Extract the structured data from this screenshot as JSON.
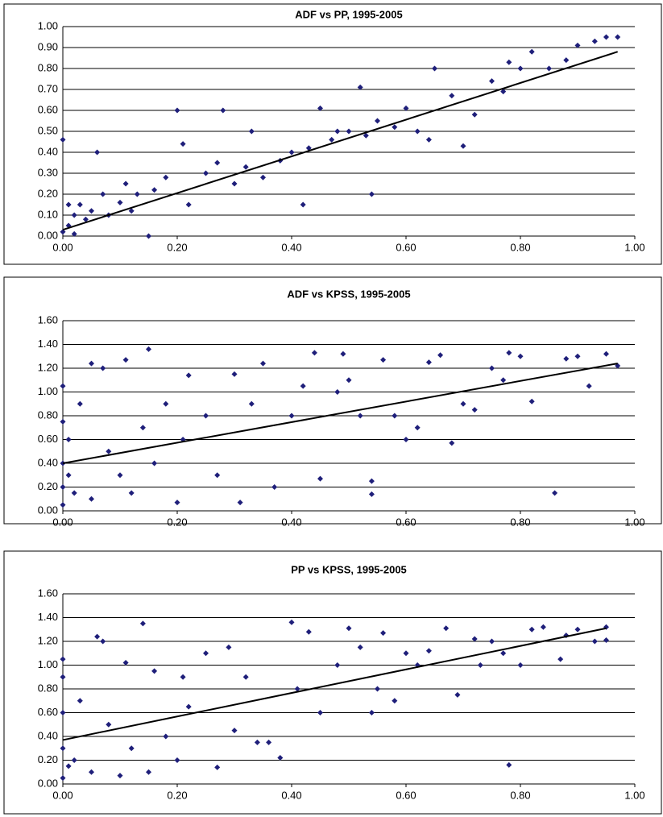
{
  "chart_data": [
    {
      "type": "scatter",
      "title": "ADF vs PP, 1995-2005",
      "color": "#1f1f7a",
      "grid": true,
      "xlim": [
        0,
        1
      ],
      "xticks": [
        {
          "value": 0,
          "label": "0.00"
        },
        {
          "value": 0.2,
          "label": "0.20"
        },
        {
          "value": 0.4,
          "label": "0.40"
        },
        {
          "value": 0.6,
          "label": "0.60"
        },
        {
          "value": 0.8,
          "label": "0.80"
        },
        {
          "value": 1,
          "label": "1.00"
        }
      ],
      "ylim": [
        0,
        1
      ],
      "yticks": [
        {
          "value": 0,
          "label": "0.00"
        },
        {
          "value": 0.1,
          "label": "0.10"
        },
        {
          "value": 0.2,
          "label": "0.20"
        },
        {
          "value": 0.3,
          "label": "0.30"
        },
        {
          "value": 0.4,
          "label": "0.40"
        },
        {
          "value": 0.5,
          "label": "0.50"
        },
        {
          "value": 0.6,
          "label": "0.60"
        },
        {
          "value": 0.7,
          "label": "0.70"
        },
        {
          "value": 0.8,
          "label": "0.80"
        },
        {
          "value": 0.9,
          "label": "0.90"
        },
        {
          "value": 1,
          "label": "1.00"
        }
      ],
      "x": [
        0,
        0,
        0.01,
        0.01,
        0.02,
        0.02,
        0.03,
        0.04,
        0.05,
        0.06,
        0.07,
        0.08,
        0.1,
        0.11,
        0.12,
        0.13,
        0.15,
        0.16,
        0.18,
        0.2,
        0.21,
        0.22,
        0.25,
        0.27,
        0.28,
        0.3,
        0.32,
        0.33,
        0.35,
        0.38,
        0.4,
        0.42,
        0.43,
        0.45,
        0.47,
        0.48,
        0.5,
        0.52,
        0.53,
        0.54,
        0.55,
        0.58,
        0.6,
        0.62,
        0.64,
        0.65,
        0.68,
        0.7,
        0.72,
        0.75,
        0.77,
        0.78,
        0.8,
        0.82,
        0.85,
        0.88,
        0.9,
        0.93,
        0.95,
        0.97
      ],
      "values": [
        0.46,
        0.02,
        0.05,
        0.15,
        0.1,
        0.01,
        0.15,
        0.08,
        0.12,
        0.4,
        0.2,
        0.1,
        0.16,
        0.25,
        0.12,
        0.2,
        0.0,
        0.22,
        0.28,
        0.6,
        0.44,
        0.15,
        0.3,
        0.35,
        0.6,
        0.25,
        0.33,
        0.5,
        0.28,
        0.36,
        0.4,
        0.15,
        0.42,
        0.61,
        0.46,
        0.5,
        0.5,
        0.71,
        0.48,
        0.2,
        0.55,
        0.52,
        0.61,
        0.5,
        0.46,
        0.8,
        0.67,
        0.43,
        0.58,
        0.74,
        0.69,
        0.83,
        0.8,
        0.88,
        0.8,
        0.84,
        0.91,
        0.93,
        0.95,
        0.95
      ],
      "trendline": {
        "x": [
          0,
          0.97
        ],
        "values": [
          0.03,
          0.88
        ],
        "color": "#000000"
      }
    },
    {
      "type": "scatter",
      "title": "ADF vs KPSS, 1995-2005",
      "color": "#1f1f7a",
      "grid": true,
      "xlim": [
        0,
        1
      ],
      "xticks": [
        {
          "value": 0,
          "label": "0.00"
        },
        {
          "value": 0.2,
          "label": "0.20"
        },
        {
          "value": 0.4,
          "label": "0.40"
        },
        {
          "value": 0.6,
          "label": "0.60"
        },
        {
          "value": 0.8,
          "label": "0.80"
        },
        {
          "value": 1,
          "label": "1.00"
        }
      ],
      "ylim": [
        0,
        1.6
      ],
      "yticks": [
        {
          "value": 0,
          "label": "0.00"
        },
        {
          "value": 0.2,
          "label": "0.20"
        },
        {
          "value": 0.4,
          "label": "0.40"
        },
        {
          "value": 0.6,
          "label": "0.60"
        },
        {
          "value": 0.8,
          "label": "0.80"
        },
        {
          "value": 1,
          "label": "1.00"
        },
        {
          "value": 1.2,
          "label": "1.20"
        },
        {
          "value": 1.4,
          "label": "1.40"
        },
        {
          "value": 1.6,
          "label": "1.60"
        }
      ],
      "x": [
        0,
        0,
        0,
        0,
        0,
        0.01,
        0.01,
        0.02,
        0.03,
        0.05,
        0.05,
        0.07,
        0.08,
        0.1,
        0.11,
        0.12,
        0.14,
        0.15,
        0.16,
        0.18,
        0.2,
        0.21,
        0.22,
        0.25,
        0.27,
        0.3,
        0.31,
        0.33,
        0.35,
        0.37,
        0.4,
        0.42,
        0.44,
        0.45,
        0.48,
        0.5,
        0.52,
        0.54,
        0.54,
        0.56,
        0.58,
        0.6,
        0.62,
        0.64,
        0.66,
        0.68,
        0.7,
        0.72,
        0.75,
        0.77,
        0.78,
        0.8,
        0.82,
        0.86,
        0.88,
        0.9,
        0.92,
        0.95,
        0.97,
        0.49
      ],
      "values": [
        0.05,
        0.2,
        0.4,
        0.75,
        1.05,
        0.3,
        0.6,
        0.15,
        0.9,
        1.24,
        0.1,
        1.2,
        0.5,
        0.3,
        1.27,
        0.15,
        0.7,
        1.36,
        0.4,
        0.9,
        0.07,
        0.6,
        1.14,
        0.8,
        0.3,
        1.15,
        0.07,
        0.9,
        1.24,
        0.2,
        0.8,
        1.05,
        1.33,
        0.27,
        1.0,
        1.1,
        0.8,
        0.25,
        0.14,
        1.27,
        0.8,
        0.6,
        0.7,
        1.25,
        1.31,
        0.57,
        0.9,
        0.85,
        1.2,
        1.1,
        1.33,
        1.3,
        0.92,
        0.15,
        1.28,
        1.3,
        1.05,
        1.32,
        1.22,
        1.32
      ],
      "trendline": {
        "x": [
          0,
          0.97
        ],
        "values": [
          0.4,
          1.24
        ],
        "color": "#000000"
      }
    },
    {
      "type": "scatter",
      "title": "PP vs KPSS, 1995-2005",
      "color": "#1f1f7a",
      "grid": true,
      "xlim": [
        0,
        1
      ],
      "xticks": [
        {
          "value": 0,
          "label": "0.00"
        },
        {
          "value": 0.2,
          "label": "0.20"
        },
        {
          "value": 0.4,
          "label": "0.40"
        },
        {
          "value": 0.6,
          "label": "0.60"
        },
        {
          "value": 0.8,
          "label": "0.80"
        },
        {
          "value": 1,
          "label": "1.00"
        }
      ],
      "ylim": [
        0,
        1.6
      ],
      "yticks": [
        {
          "value": 0,
          "label": "0.00"
        },
        {
          "value": 0.2,
          "label": "0.20"
        },
        {
          "value": 0.4,
          "label": "0.40"
        },
        {
          "value": 0.6,
          "label": "0.60"
        },
        {
          "value": 0.8,
          "label": "0.80"
        },
        {
          "value": 1,
          "label": "1.00"
        },
        {
          "value": 1.2,
          "label": "1.20"
        },
        {
          "value": 1.4,
          "label": "1.40"
        },
        {
          "value": 1.6,
          "label": "1.60"
        }
      ],
      "x": [
        0,
        0,
        0,
        0,
        0,
        0.01,
        0.02,
        0.03,
        0.05,
        0.06,
        0.07,
        0.08,
        0.1,
        0.11,
        0.12,
        0.14,
        0.15,
        0.16,
        0.18,
        0.2,
        0.21,
        0.22,
        0.25,
        0.27,
        0.29,
        0.3,
        0.32,
        0.34,
        0.36,
        0.38,
        0.4,
        0.41,
        0.43,
        0.45,
        0.48,
        0.5,
        0.52,
        0.54,
        0.55,
        0.56,
        0.58,
        0.6,
        0.62,
        0.64,
        0.67,
        0.69,
        0.72,
        0.73,
        0.75,
        0.77,
        0.78,
        0.8,
        0.82,
        0.84,
        0.87,
        0.88,
        0.9,
        0.93,
        0.95,
        0.95
      ],
      "values": [
        0.05,
        0.3,
        0.6,
        0.9,
        1.05,
        0.15,
        0.2,
        0.7,
        0.1,
        1.24,
        1.2,
        0.5,
        0.07,
        1.02,
        0.3,
        1.35,
        0.1,
        0.95,
        0.4,
        0.2,
        0.9,
        0.65,
        1.1,
        0.14,
        1.15,
        0.45,
        0.9,
        0.35,
        0.35,
        0.22,
        1.36,
        0.8,
        1.28,
        0.6,
        1.0,
        1.31,
        1.15,
        0.6,
        0.8,
        1.27,
        0.7,
        1.1,
        1.0,
        1.12,
        1.31,
        0.75,
        1.22,
        1.0,
        1.2,
        1.1,
        0.16,
        1.0,
        1.3,
        1.32,
        1.05,
        1.25,
        1.3,
        1.2,
        1.32,
        1.21
      ],
      "trendline": {
        "x": [
          0,
          0.95
        ],
        "values": [
          0.37,
          1.31
        ],
        "color": "#000000"
      }
    }
  ]
}
